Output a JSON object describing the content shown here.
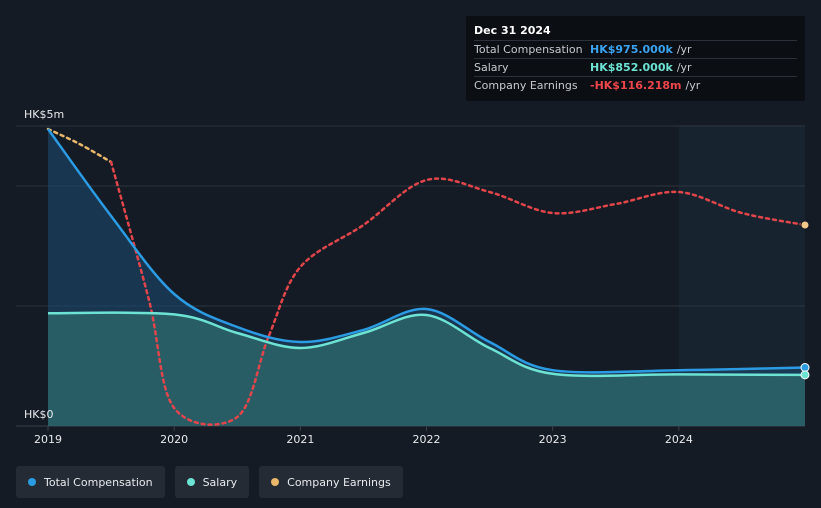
{
  "colors": {
    "background": "#151b24",
    "total_compensation": "#2b9be3",
    "salary": "#6de3d3",
    "company_earnings": "#e2454a",
    "earnings_legend": "#e9b86a"
  },
  "tooltip": {
    "date": "Dec 31 2024",
    "rows": [
      {
        "label": "Total Compensation",
        "value": "HK$975.000k",
        "unit": "/yr",
        "color": "#3aa3f0"
      },
      {
        "label": "Salary",
        "value": "HK$852.000k",
        "unit": "/yr",
        "color": "#6de3d3"
      },
      {
        "label": "Company Earnings",
        "value": "-HK$116.218m",
        "unit": "/yr",
        "color": "#f0454a"
      }
    ]
  },
  "legend": [
    {
      "label": "Total Compensation",
      "color": "#2b9be3"
    },
    {
      "label": "Salary",
      "color": "#6de3d3"
    },
    {
      "label": "Company Earnings",
      "color": "#e9b86a"
    }
  ],
  "chart_data": {
    "type": "line",
    "y_tick_labels": [
      "HK$5m",
      "HK$0"
    ],
    "x_ticks": [
      "2019",
      "2020",
      "2021",
      "2022",
      "2023",
      "2024"
    ],
    "ylim": [
      0,
      5
    ],
    "xlim": [
      2019.0,
      2025.0
    ],
    "highlight_start": 2024.0,
    "grid": true,
    "series": [
      {
        "name": "Total Compensation",
        "unit": "HK$m",
        "points": [
          [
            2019.0,
            4.95
          ],
          [
            2019.5,
            3.5
          ],
          [
            2020.0,
            2.2
          ],
          [
            2020.5,
            1.65
          ],
          [
            2021.0,
            1.4
          ],
          [
            2021.5,
            1.6
          ],
          [
            2022.0,
            1.95
          ],
          [
            2022.5,
            1.4
          ],
          [
            2023.0,
            0.93
          ],
          [
            2024.0,
            0.93
          ],
          [
            2024.5,
            0.95
          ],
          [
            2025.0,
            0.975
          ]
        ]
      },
      {
        "name": "Salary",
        "unit": "HK$m",
        "points": [
          [
            2019.0,
            1.88
          ],
          [
            2020.0,
            1.86
          ],
          [
            2020.5,
            1.55
          ],
          [
            2021.0,
            1.3
          ],
          [
            2021.5,
            1.55
          ],
          [
            2022.0,
            1.85
          ],
          [
            2022.5,
            1.3
          ],
          [
            2023.0,
            0.87
          ],
          [
            2024.0,
            0.86
          ],
          [
            2025.0,
            0.852
          ]
        ]
      },
      {
        "name": "Company Earnings",
        "unit": "HK$m (scaled)",
        "points": [
          [
            2019.0,
            4.95
          ],
          [
            2019.25,
            4.7
          ],
          [
            2019.5,
            4.4
          ],
          [
            2019.8,
            2.1
          ],
          [
            2020.0,
            0.3
          ],
          [
            2020.5,
            0.15
          ],
          [
            2020.75,
            1.5
          ],
          [
            2021.0,
            2.65
          ],
          [
            2021.5,
            3.35
          ],
          [
            2022.0,
            4.1
          ],
          [
            2022.5,
            3.9
          ],
          [
            2023.0,
            3.55
          ],
          [
            2023.5,
            3.7
          ],
          [
            2024.0,
            3.9
          ],
          [
            2024.5,
            3.55
          ],
          [
            2025.0,
            3.35
          ]
        ]
      }
    ]
  }
}
